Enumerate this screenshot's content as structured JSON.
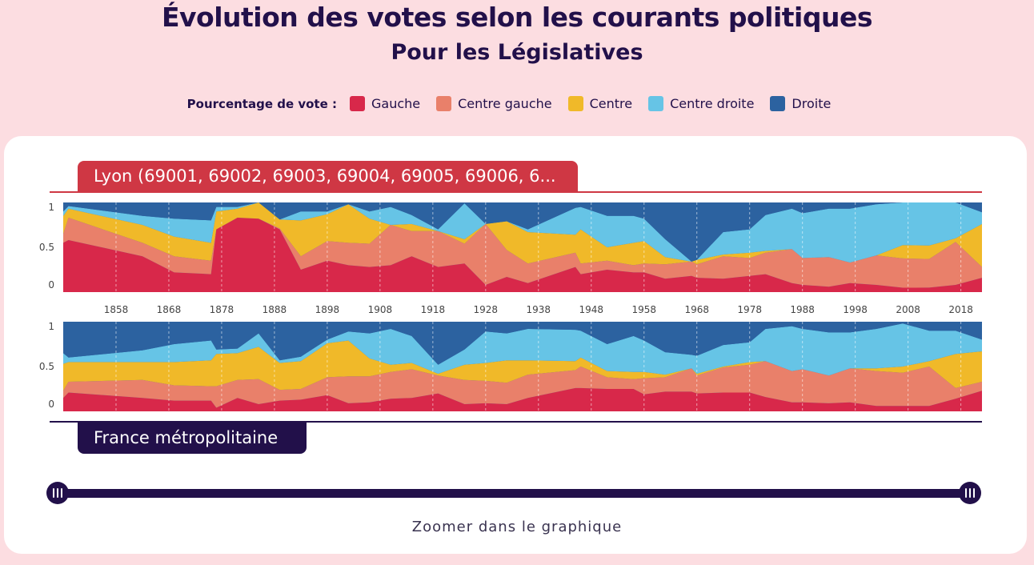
{
  "header": {
    "title": "Évolution des votes selon les courants politiques",
    "subtitle": "Pour les Législatives"
  },
  "legend": {
    "title": "Pourcentage de vote :",
    "items": [
      {
        "label": "Gauche",
        "color": "#d8284a"
      },
      {
        "label": "Centre gauche",
        "color": "#e9806a"
      },
      {
        "label": "Centre",
        "color": "#f0b929"
      },
      {
        "label": "Centre droite",
        "color": "#66c4e6"
      },
      {
        "label": "Droite",
        "color": "#2c62a0"
      }
    ]
  },
  "tabs": {
    "top_label": "Lyon (69001, 69002, 69003, 69004, 69005, 69006, 6...",
    "bottom_label": "France métropolitaine"
  },
  "zoom": {
    "label": "Zoomer dans le graphique"
  },
  "chart_data": [
    {
      "type": "area",
      "stacked": true,
      "name": "Lyon (69001, 69002, 69003, 69004, 69005, 69006, 6...",
      "x": [
        1848,
        1849,
        1863,
        1869,
        1876,
        1877,
        1881,
        1885,
        1889,
        1893,
        1898,
        1902,
        1906,
        1910,
        1914,
        1919,
        1924,
        1928,
        1932,
        1936,
        1945,
        1946,
        1951,
        1956,
        1958,
        1962,
        1967,
        1968,
        1973,
        1978,
        1981,
        1986,
        1988,
        1993,
        1997,
        2002,
        2007,
        2012,
        2017,
        2022
      ],
      "yticks": [
        "0",
        "0.5",
        "1"
      ],
      "xticks": [
        "1858",
        "1868",
        "1878",
        "1888",
        "1898",
        "1908",
        "1918",
        "1928",
        "1938",
        "1948",
        "1958",
        "1968",
        "1978",
        "1988",
        "1998",
        "2008",
        "2018"
      ],
      "series": [
        {
          "name": "Gauche",
          "values": [
            0.55,
            0.58,
            0.4,
            0.22,
            0.2,
            0.7,
            0.83,
            0.82,
            0.7,
            0.25,
            0.35,
            0.3,
            0.28,
            0.3,
            0.4,
            0.28,
            0.32,
            0.08,
            0.17,
            0.1,
            0.28,
            0.2,
            0.25,
            0.22,
            0.22,
            0.15,
            0.18,
            0.16,
            0.15,
            0.18,
            0.2,
            0.1,
            0.08,
            0.06,
            0.1,
            0.08,
            0.05,
            0.05,
            0.08,
            0.16
          ]
        },
        {
          "name": "Centre gauche",
          "values": [
            0.1,
            0.25,
            0.15,
            0.18,
            0.15,
            0.0,
            0.0,
            0.0,
            0.01,
            0.15,
            0.22,
            0.25,
            0.26,
            0.45,
            0.28,
            0.4,
            0.22,
            0.68,
            0.3,
            0.22,
            0.16,
            0.12,
            0.1,
            0.08,
            0.1,
            0.16,
            0.16,
            0.15,
            0.25,
            0.2,
            0.24,
            0.38,
            0.3,
            0.33,
            0.23,
            0.33,
            0.33,
            0.32,
            0.48,
            0.12
          ]
        },
        {
          "name": "Centre",
          "values": [
            0.2,
            0.1,
            0.2,
            0.22,
            0.2,
            0.2,
            0.1,
            0.18,
            0.1,
            0.4,
            0.3,
            0.43,
            0.28,
            0.0,
            0.08,
            0.0,
            0.05,
            0.0,
            0.32,
            0.35,
            0.2,
            0.38,
            0.15,
            0.25,
            0.25,
            0.08,
            0.0,
            0.05,
            0.02,
            0.06,
            0.02,
            0.0,
            0.0,
            0.0,
            0.0,
            0.0,
            0.15,
            0.15,
            0.04,
            0.48
          ]
        },
        {
          "name": "Centre droite",
          "values": [
            0.05,
            0.03,
            0.1,
            0.2,
            0.25,
            0.05,
            0.02,
            0.0,
            0.0,
            0.1,
            0.03,
            0.0,
            0.08,
            0.2,
            0.1,
            0.02,
            0.4,
            0.0,
            0.0,
            0.03,
            0.3,
            0.25,
            0.35,
            0.3,
            0.25,
            0.2,
            0.0,
            0.0,
            0.25,
            0.26,
            0.4,
            0.45,
            0.5,
            0.54,
            0.6,
            0.57,
            0.48,
            0.48,
            0.4,
            0.13
          ]
        },
        {
          "name": "Droite",
          "values": [
            0.1,
            0.04,
            0.15,
            0.18,
            0.2,
            0.05,
            0.05,
            0.0,
            0.19,
            0.1,
            0.1,
            0.02,
            0.1,
            0.05,
            0.14,
            0.3,
            0.01,
            0.24,
            0.21,
            0.3,
            0.06,
            0.05,
            0.15,
            0.15,
            0.18,
            0.41,
            0.66,
            0.64,
            0.33,
            0.3,
            0.14,
            0.07,
            0.12,
            0.07,
            0.07,
            0.02,
            0.0,
            0.0,
            0.0,
            0.11
          ]
        }
      ]
    },
    {
      "type": "area",
      "stacked": true,
      "name": "France métropolitaine",
      "x": [
        1848,
        1849,
        1863,
        1869,
        1876,
        1877,
        1881,
        1885,
        1889,
        1893,
        1898,
        1902,
        1906,
        1910,
        1914,
        1919,
        1924,
        1928,
        1932,
        1936,
        1945,
        1946,
        1951,
        1956,
        1958,
        1962,
        1967,
        1968,
        1973,
        1978,
        1981,
        1986,
        1988,
        1993,
        1997,
        2002,
        2007,
        2012,
        2017,
        2022
      ],
      "yticks": [
        "0",
        "0.5",
        "1"
      ],
      "xticks": [
        "1858",
        "1868",
        "1878",
        "1888",
        "1898",
        "1908",
        "1918",
        "1928",
        "1938",
        "1948",
        "1958",
        "1968",
        "1978",
        "1988",
        "1998",
        "2008",
        "2018"
      ],
      "series": [
        {
          "name": "Gauche",
          "values": [
            0.15,
            0.21,
            0.15,
            0.12,
            0.12,
            0.04,
            0.15,
            0.08,
            0.12,
            0.13,
            0.18,
            0.09,
            0.1,
            0.14,
            0.15,
            0.2,
            0.08,
            0.09,
            0.08,
            0.15,
            0.26,
            0.26,
            0.25,
            0.25,
            0.19,
            0.22,
            0.22,
            0.2,
            0.21,
            0.21,
            0.16,
            0.1,
            0.1,
            0.09,
            0.1,
            0.06,
            0.06,
            0.06,
            0.14,
            0.23
          ]
        },
        {
          "name": "Centre gauche",
          "values": [
            0.08,
            0.12,
            0.2,
            0.17,
            0.16,
            0.24,
            0.2,
            0.28,
            0.12,
            0.12,
            0.2,
            0.3,
            0.29,
            0.3,
            0.32,
            0.2,
            0.27,
            0.25,
            0.24,
            0.26,
            0.2,
            0.24,
            0.13,
            0.11,
            0.18,
            0.16,
            0.26,
            0.2,
            0.28,
            0.31,
            0.4,
            0.35,
            0.37,
            0.31,
            0.38,
            0.39,
            0.37,
            0.44,
            0.12,
            0.1
          ]
        },
        {
          "name": "Centre",
          "values": [
            0.3,
            0.22,
            0.2,
            0.26,
            0.29,
            0.36,
            0.3,
            0.36,
            0.3,
            0.31,
            0.38,
            0.4,
            0.2,
            0.08,
            0.07,
            0.02,
            0.17,
            0.2,
            0.25,
            0.16,
            0.1,
            0.1,
            0.07,
            0.08,
            0.07,
            0.03,
            0.0,
            0.02,
            0.01,
            0.03,
            0.0,
            0.0,
            0.0,
            0.0,
            0.0,
            0.03,
            0.07,
            0.06,
            0.38,
            0.34
          ]
        },
        {
          "name": "Centre droite",
          "values": [
            0.12,
            0.05,
            0.13,
            0.2,
            0.22,
            0.05,
            0.05,
            0.15,
            0.03,
            0.05,
            0.04,
            0.1,
            0.28,
            0.4,
            0.3,
            0.1,
            0.17,
            0.35,
            0.3,
            0.35,
            0.35,
            0.3,
            0.3,
            0.4,
            0.35,
            0.25,
            0.15,
            0.2,
            0.24,
            0.22,
            0.36,
            0.5,
            0.45,
            0.48,
            0.4,
            0.44,
            0.48,
            0.34,
            0.26,
            0.13
          ]
        },
        {
          "name": "Droite",
          "values": [
            0.35,
            0.4,
            0.32,
            0.25,
            0.21,
            0.31,
            0.3,
            0.13,
            0.43,
            0.39,
            0.2,
            0.11,
            0.13,
            0.08,
            0.16,
            0.48,
            0.31,
            0.11,
            0.13,
            0.08,
            0.09,
            0.1,
            0.25,
            0.16,
            0.21,
            0.34,
            0.37,
            0.38,
            0.26,
            0.23,
            0.08,
            0.05,
            0.08,
            0.12,
            0.12,
            0.08,
            0.02,
            0.1,
            0.1,
            0.2
          ]
        }
      ]
    }
  ]
}
